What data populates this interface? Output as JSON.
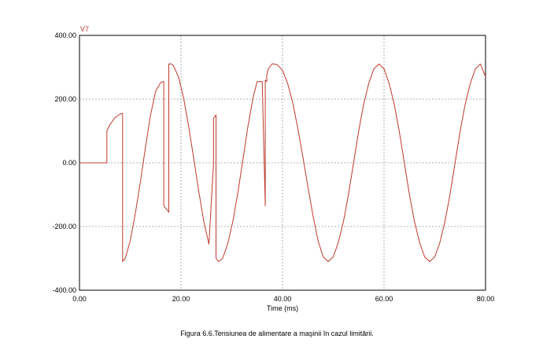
{
  "chart_data": {
    "type": "line",
    "xlabel": "Time (ms)",
    "ylabel": "",
    "xlim": [
      0,
      80
    ],
    "ylim": [
      -400,
      400
    ],
    "x_ticks": [
      0,
      20,
      40,
      60,
      80
    ],
    "x_tick_labels": [
      "0.00",
      "20.00",
      "40.00",
      "60.00",
      "80.00"
    ],
    "y_ticks": [
      -400,
      -200,
      0,
      200,
      400
    ],
    "y_tick_labels": [
      "-400.00",
      "-200.00",
      "0.00",
      "200.00",
      "400.00"
    ],
    "grid": true,
    "series": [
      {
        "name": "V7",
        "color": "#c0392b",
        "x": [
          0,
          5.4,
          5.4,
          6,
          7,
          8,
          8.5,
          8.5,
          9,
          10,
          11,
          12,
          13,
          14,
          15,
          16,
          16.6,
          16.6,
          17.6,
          17.6,
          18,
          18.5,
          19.5,
          20.5,
          21.5,
          22.5,
          23.5,
          24.5,
          25.5,
          26.4,
          26.4,
          26.9,
          26.9,
          27.4,
          28.2,
          29.2,
          30.2,
          31.2,
          32.2,
          33.2,
          34.2,
          35,
          36,
          36.6,
          36.6,
          36.9,
          36.9,
          37.2,
          38,
          39,
          40,
          41,
          42,
          43,
          44,
          45,
          46,
          47,
          48,
          49,
          50,
          51,
          52,
          53,
          54,
          55,
          56,
          57,
          58,
          59,
          60,
          61,
          62,
          63,
          64,
          65,
          66,
          67,
          68,
          69,
          70,
          71,
          72,
          73,
          74,
          75,
          76,
          77,
          78,
          79,
          80
        ],
        "values": [
          0,
          0,
          100,
          120,
          142,
          153,
          155,
          -310,
          -300,
          -245,
          -160,
          -60,
          50,
          150,
          225,
          252,
          255,
          -135,
          -155,
          310,
          311,
          305,
          270,
          205,
          115,
          15,
          -90,
          -185,
          -255,
          -5,
          140,
          150,
          -300,
          -310,
          -300,
          -255,
          -185,
          -95,
          10,
          115,
          205,
          255,
          255,
          -135,
          260,
          255,
          275,
          295,
          311,
          308,
          290,
          250,
          190,
          110,
          20,
          -75,
          -165,
          -245,
          -295,
          -310,
          -295,
          -250,
          -185,
          -100,
          0,
          100,
          185,
          250,
          295,
          310,
          295,
          250,
          185,
          100,
          0,
          -100,
          -185,
          -250,
          -295,
          -310,
          -295,
          -250,
          -185,
          -100,
          0,
          100,
          185,
          250,
          295,
          310,
          270
        ]
      }
    ]
  },
  "caption": "Figura 6.6.Tensiunea de alimentare a maşinii în cazul limitării."
}
